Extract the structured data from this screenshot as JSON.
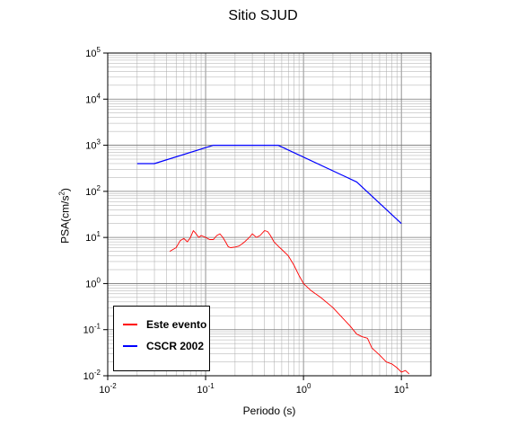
{
  "chart_data": {
    "type": "line",
    "title": "Sitio SJUD",
    "xlabel": "Periodo (s)",
    "ylabel": "PSA(cm/s2)",
    "ylabel_main": "PSA(cm/s",
    "ylabel_sup": "2",
    "ylabel_tail": ")",
    "xscale": "log",
    "yscale": "log",
    "xlim": [
      0.01,
      20
    ],
    "ylim": [
      0.01,
      100000
    ],
    "grid": true,
    "legend_position": "bottom-left",
    "x_ticks": [
      {
        "value": 0.01,
        "base": "10",
        "exp": "-2"
      },
      {
        "value": 0.1,
        "base": "10",
        "exp": "-1"
      },
      {
        "value": 1,
        "base": "10",
        "exp": "0"
      },
      {
        "value": 10,
        "base": "10",
        "exp": "1"
      }
    ],
    "y_ticks": [
      {
        "value": 0.01,
        "base": "10",
        "exp": "-2"
      },
      {
        "value": 0.1,
        "base": "10",
        "exp": "-1"
      },
      {
        "value": 1,
        "base": "10",
        "exp": "0"
      },
      {
        "value": 10,
        "base": "10",
        "exp": "1"
      },
      {
        "value": 100,
        "base": "10",
        "exp": "2"
      },
      {
        "value": 1000,
        "base": "10",
        "exp": "3"
      },
      {
        "value": 10000,
        "base": "10",
        "exp": "4"
      },
      {
        "value": 100000,
        "base": "10",
        "exp": "5"
      }
    ],
    "series": [
      {
        "name": "Este evento",
        "color": "#ff0000",
        "x": [
          0.043,
          0.05,
          0.055,
          0.06,
          0.065,
          0.07,
          0.075,
          0.08,
          0.085,
          0.09,
          0.1,
          0.11,
          0.12,
          0.13,
          0.14,
          0.15,
          0.16,
          0.17,
          0.18,
          0.2,
          0.22,
          0.25,
          0.28,
          0.3,
          0.33,
          0.36,
          0.4,
          0.43,
          0.46,
          0.5,
          0.55,
          0.6,
          0.7,
          0.8,
          0.9,
          1.0,
          1.2,
          1.5,
          2.0,
          2.5,
          3.0,
          3.5,
          4.0,
          4.5,
          5.0,
          6.0,
          7.0,
          8.0,
          9.0,
          10.0,
          11.0,
          12.0
        ],
        "y": [
          5,
          6,
          8.5,
          9.5,
          8,
          10,
          14,
          12,
          10,
          11,
          10,
          9,
          9,
          11,
          12,
          10,
          8,
          6.3,
          6,
          6.2,
          6.5,
          8,
          10,
          12,
          10,
          11,
          14,
          13.5,
          11,
          8,
          6.5,
          5.5,
          4,
          2.5,
          1.5,
          1.0,
          0.7,
          0.5,
          0.3,
          0.18,
          0.12,
          0.08,
          0.07,
          0.065,
          0.04,
          0.028,
          0.02,
          0.018,
          0.015,
          0.012,
          0.013,
          0.011
        ]
      },
      {
        "name": "CSCR 2002",
        "color": "#0000ff",
        "x": [
          0.02,
          0.03,
          0.12,
          0.55,
          3.5,
          10
        ],
        "y": [
          400,
          400,
          1000,
          1000,
          160,
          20
        ]
      }
    ]
  }
}
